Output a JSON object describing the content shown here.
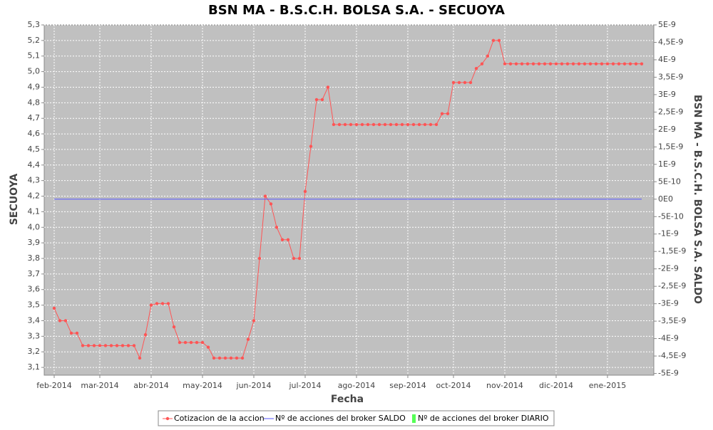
{
  "chart_data": {
    "type": "line",
    "title": "BSN MA - B.S.C.H. BOLSA S.A. - SECUOYA",
    "xlabel": "Fecha",
    "ylabel": "SECUOYA",
    "y2label": "BSN MA - B.S.C.H. BOLSA S.A. SALDO",
    "grid": true,
    "legend": "bottom",
    "categories": [
      "feb-2014",
      null,
      null,
      null,
      null,
      null,
      null,
      null,
      "mar-2014",
      null,
      null,
      null,
      null,
      null,
      null,
      null,
      null,
      "abr-2014",
      null,
      null,
      null,
      null,
      null,
      null,
      null,
      null,
      "may-2014",
      null,
      null,
      null,
      null,
      null,
      null,
      null,
      null,
      "jun-2014",
      null,
      null,
      null,
      null,
      null,
      null,
      null,
      null,
      "jul-2014",
      null,
      null,
      null,
      null,
      null,
      null,
      null,
      null,
      "ago-2014",
      null,
      null,
      null,
      null,
      null,
      null,
      null,
      null,
      "sep-2014",
      null,
      null,
      null,
      null,
      null,
      null,
      null,
      "oct-2014",
      null,
      null,
      null,
      null,
      null,
      null,
      null,
      null,
      "nov-2014",
      null,
      null,
      null,
      null,
      null,
      null,
      null,
      null,
      "dic-2014",
      null,
      null,
      null,
      null,
      null,
      null,
      null,
      null,
      "ene-2015",
      null,
      null,
      null,
      null,
      null,
      null
    ],
    "series": [
      {
        "name": "Cotizacion de la accion",
        "color": "#ff5555",
        "values": [
          3.48,
          3.4,
          3.4,
          3.32,
          3.32,
          3.24,
          3.24,
          3.24,
          3.24,
          3.24,
          3.24,
          3.24,
          3.24,
          3.24,
          3.24,
          3.16,
          3.31,
          3.5,
          3.51,
          3.51,
          3.51,
          3.36,
          3.26,
          3.26,
          3.26,
          3.26,
          3.26,
          3.23,
          3.16,
          3.16,
          3.16,
          3.16,
          3.16,
          3.16,
          3.28,
          3.4,
          3.8,
          4.2,
          4.15,
          4.0,
          3.92,
          3.92,
          3.8,
          3.8,
          4.23,
          4.52,
          4.82,
          4.82,
          4.9,
          4.66,
          4.66,
          4.66,
          4.66,
          4.66,
          4.66,
          4.66,
          4.66,
          4.66,
          4.66,
          4.66,
          4.66,
          4.66,
          4.66,
          4.66,
          4.66,
          4.66,
          4.66,
          4.66,
          4.73,
          4.73,
          4.93,
          4.93,
          4.93,
          4.93,
          5.02,
          5.05,
          5.1,
          5.2,
          5.2,
          5.05,
          5.05,
          5.05,
          5.05,
          5.05,
          5.05,
          5.05,
          5.05,
          5.05,
          5.05,
          5.05,
          5.05,
          5.05,
          5.05,
          5.05,
          5.05,
          5.05,
          5.05,
          5.05,
          5.05,
          5.05,
          5.05,
          5.05,
          5.05,
          5.05
        ]
      },
      {
        "name": "Nº de acciones del broker SALDO",
        "color": "#5555ff",
        "axis": "y2",
        "values": [
          0,
          0,
          0,
          0,
          0,
          0,
          0,
          0,
          0,
          0,
          0,
          0,
          0,
          0,
          0,
          0,
          0,
          0,
          0,
          0,
          0,
          0,
          0,
          0,
          0,
          0,
          0,
          0,
          0,
          0,
          0,
          0,
          0,
          0,
          0,
          0,
          0,
          0,
          0,
          0,
          0,
          0,
          0,
          0,
          0,
          0,
          0,
          0,
          0,
          0,
          0,
          0,
          0,
          0,
          0,
          0,
          0,
          0,
          0,
          0,
          0,
          0,
          0,
          0,
          0,
          0,
          0,
          0,
          0,
          0,
          0,
          0,
          0,
          0,
          0,
          0,
          0,
          0,
          0,
          0,
          0,
          0,
          0,
          0,
          0,
          0,
          0,
          0,
          0,
          0,
          0,
          0,
          0,
          0,
          0,
          0,
          0,
          0,
          0,
          0,
          0,
          0,
          0,
          0
        ]
      },
      {
        "name": "Nº de acciones del broker DIARIO",
        "color": "#55ff55",
        "axis": "y2",
        "values": [
          0,
          0,
          0,
          0,
          0,
          0,
          0,
          0,
          0,
          0,
          0,
          0,
          0,
          0,
          0,
          0,
          0,
          0,
          0,
          0,
          0,
          0,
          0,
          0,
          0,
          0,
          0,
          0,
          0,
          0,
          0,
          0,
          0,
          0,
          0,
          0,
          0,
          0,
          0,
          0,
          0,
          0,
          0,
          0,
          0,
          0,
          0,
          0,
          0,
          0,
          0,
          0,
          0,
          0,
          0,
          0,
          0,
          0,
          0,
          0,
          0,
          0,
          0,
          0,
          0,
          0,
          0,
          0,
          0,
          0,
          0,
          0,
          0,
          0,
          0,
          0,
          0,
          0,
          0,
          0,
          0,
          0,
          0,
          0,
          0,
          0,
          0,
          0,
          0,
          0,
          0,
          0,
          0,
          0,
          0,
          0,
          0,
          0,
          0,
          0,
          0,
          0,
          0,
          0
        ]
      }
    ],
    "ylim": [
      3.05,
      5.3
    ],
    "yticks": [
      {
        "value": 3.1,
        "label": "3,1"
      },
      {
        "value": 3.2,
        "label": "3,2"
      },
      {
        "value": 3.3,
        "label": "3,3"
      },
      {
        "value": 3.4,
        "label": "3,4"
      },
      {
        "value": 3.5,
        "label": "3,5"
      },
      {
        "value": 3.6,
        "label": "3,6"
      },
      {
        "value": 3.7,
        "label": "3,7"
      },
      {
        "value": 3.8,
        "label": "3,8"
      },
      {
        "value": 3.9,
        "label": "3,9"
      },
      {
        "value": 4.0,
        "label": "4,0"
      },
      {
        "value": 4.1,
        "label": "4,1"
      },
      {
        "value": 4.2,
        "label": "4,2"
      },
      {
        "value": 4.3,
        "label": "4,3"
      },
      {
        "value": 4.4,
        "label": "4,4"
      },
      {
        "value": 4.5,
        "label": "4,5"
      },
      {
        "value": 4.6,
        "label": "4,6"
      },
      {
        "value": 4.7,
        "label": "4,7"
      },
      {
        "value": 4.8,
        "label": "4,8"
      },
      {
        "value": 4.9,
        "label": "4,9"
      },
      {
        "value": 5.0,
        "label": "5,0"
      },
      {
        "value": 5.1,
        "label": "5,1"
      },
      {
        "value": 5.2,
        "label": "5,2"
      },
      {
        "value": 5.3,
        "label": "5,3"
      }
    ],
    "y2lim": [
      -5.05e-09,
      5e-09
    ],
    "y2ticks": [
      {
        "value": 5e-09,
        "label": "5E-9"
      },
      {
        "value": 4.5e-09,
        "label": "4,5E-9"
      },
      {
        "value": 4e-09,
        "label": "4E-9"
      },
      {
        "value": 3.5e-09,
        "label": "3,5E-9"
      },
      {
        "value": 3e-09,
        "label": "3E-9"
      },
      {
        "value": 2.5e-09,
        "label": "2,5E-9"
      },
      {
        "value": 2e-09,
        "label": "2E-9"
      },
      {
        "value": 1.5e-09,
        "label": "1,5E-9"
      },
      {
        "value": 1e-09,
        "label": "1E-9"
      },
      {
        "value": 5e-10,
        "label": "5E-10"
      },
      {
        "value": 0,
        "label": "0E0"
      },
      {
        "value": -5e-10,
        "label": "-5E-10"
      },
      {
        "value": -1e-09,
        "label": "-1E-9"
      },
      {
        "value": -1.5e-09,
        "label": "-1,5E-9"
      },
      {
        "value": -2e-09,
        "label": "-2E-9"
      },
      {
        "value": -2.5e-09,
        "label": "-2,5E-9"
      },
      {
        "value": -3e-09,
        "label": "-3E-9"
      },
      {
        "value": -3.5e-09,
        "label": "-3,5E-9"
      },
      {
        "value": -4e-09,
        "label": "-4E-9"
      },
      {
        "value": -4.5e-09,
        "label": "-4,5E-9"
      },
      {
        "value": -5e-09,
        "label": "-5E-9"
      }
    ]
  }
}
